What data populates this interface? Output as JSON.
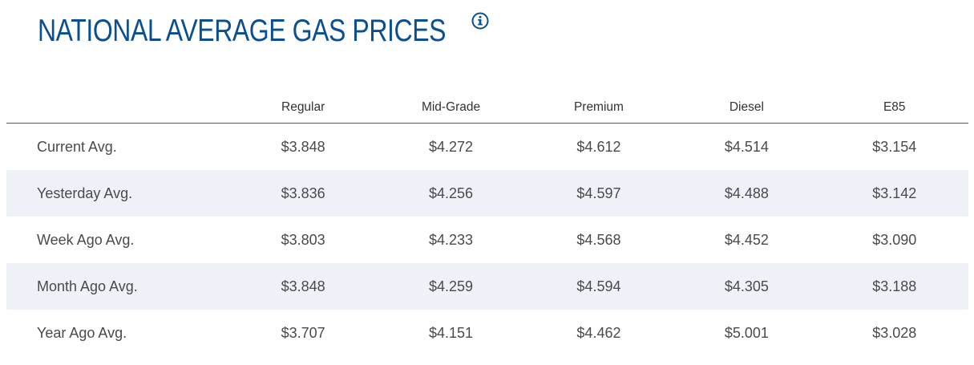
{
  "header": {
    "title": "NATIONAL AVERAGE GAS PRICES",
    "info_icon": "info-circle-icon",
    "accent_color": "#0a4f8f"
  },
  "table": {
    "columns": [
      "Regular",
      "Mid-Grade",
      "Premium",
      "Diesel",
      "E85"
    ],
    "rows": [
      {
        "label": "Current Avg.",
        "values": [
          "$3.848",
          "$4.272",
          "$4.612",
          "$4.514",
          "$3.154"
        ]
      },
      {
        "label": "Yesterday Avg.",
        "values": [
          "$3.836",
          "$4.256",
          "$4.597",
          "$4.488",
          "$3.142"
        ]
      },
      {
        "label": "Week Ago Avg.",
        "values": [
          "$3.803",
          "$4.233",
          "$4.568",
          "$4.452",
          "$3.090"
        ]
      },
      {
        "label": "Month Ago Avg.",
        "values": [
          "$3.848",
          "$4.259",
          "$4.594",
          "$4.305",
          "$3.188"
        ]
      },
      {
        "label": "Year Ago Avg.",
        "values": [
          "$3.707",
          "$4.151",
          "$4.462",
          "$5.001",
          "$3.028"
        ]
      }
    ],
    "alt_row_color": "#eef2f8"
  }
}
